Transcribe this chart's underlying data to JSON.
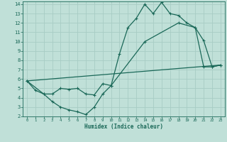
{
  "xlabel": "Humidex (Indice chaleur)",
  "bg_color": "#c0e0d8",
  "grid_color": "#a8ccc4",
  "line_color": "#1a6858",
  "xlim": [
    -0.5,
    23.5
  ],
  "ylim": [
    2,
    14.3
  ],
  "xticks": [
    0,
    1,
    2,
    3,
    4,
    5,
    6,
    7,
    8,
    9,
    10,
    11,
    12,
    13,
    14,
    15,
    16,
    17,
    18,
    19,
    20,
    21,
    22,
    23
  ],
  "yticks": [
    2,
    3,
    4,
    5,
    6,
    7,
    8,
    9,
    10,
    11,
    12,
    13,
    14
  ],
  "line1_x": [
    0,
    1,
    2,
    3,
    4,
    5,
    6,
    7,
    8,
    9,
    10,
    11,
    12,
    13,
    14,
    15,
    16,
    17,
    18,
    19,
    20,
    21,
    22,
    23
  ],
  "line1_y": [
    5.8,
    4.8,
    4.4,
    3.6,
    3.0,
    2.7,
    2.5,
    2.2,
    3.0,
    4.4,
    5.3,
    8.7,
    11.5,
    12.5,
    14.0,
    13.0,
    14.2,
    13.0,
    12.8,
    12.0,
    11.5,
    10.1,
    7.3,
    7.5
  ],
  "line2_x": [
    0,
    2,
    3,
    4,
    5,
    6,
    7,
    8,
    9,
    10,
    14,
    18,
    20,
    21,
    22,
    23
  ],
  "line2_y": [
    5.8,
    4.4,
    4.4,
    5.0,
    4.9,
    5.0,
    4.4,
    4.3,
    5.5,
    5.3,
    10.0,
    12.0,
    11.5,
    7.3,
    7.3,
    7.5
  ],
  "line3_x": [
    0,
    23
  ],
  "line3_y": [
    5.8,
    7.5
  ]
}
